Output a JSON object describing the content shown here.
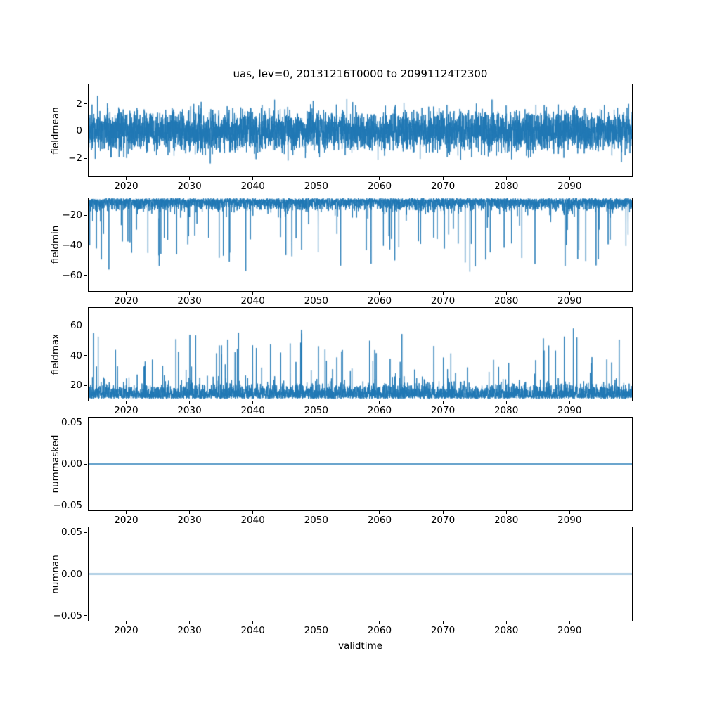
{
  "figure": {
    "title": "uas, lev=0, 20131216T0000 to 20991124T2300",
    "xlabel": "validtime",
    "line_color": "#1f77b4",
    "axis_color": "#000000",
    "background": "#ffffff"
  },
  "chart_data": [
    {
      "type": "line",
      "name": "fieldmean",
      "ylabel": "fieldmean",
      "xlim": [
        2013.96,
        2099.96
      ],
      "xticks": [
        2020,
        2030,
        2040,
        2050,
        2060,
        2070,
        2080,
        2090
      ],
      "ylim": [
        -3.4,
        3.5
      ],
      "yticks": [
        {
          "v": 2,
          "label": "2"
        },
        {
          "v": 0,
          "label": "0"
        },
        {
          "v": -2,
          "label": "−2"
        }
      ],
      "series": [
        {
          "name": "fieldmean",
          "summary": "dense high-frequency noise centred on 0, typical band ±2, extremes about ±3.2",
          "synthesis": {
            "kind": "noise",
            "seed": 42,
            "n": 5200,
            "base": 0,
            "scale": 1.05,
            "abs": false,
            "spike_prob": 0,
            "spike_scale": 0,
            "clip": [
              -3.3,
              3.3
            ]
          }
        }
      ]
    },
    {
      "type": "line",
      "name": "fieldmin",
      "ylabel": "fieldmin",
      "xlim": [
        2013.96,
        2099.96
      ],
      "xticks": [
        2020,
        2030,
        2040,
        2050,
        2060,
        2070,
        2080,
        2090
      ],
      "ylim": [
        -71,
        -8.2
      ],
      "yticks": [
        {
          "v": -20,
          "label": "−20"
        },
        {
          "v": -40,
          "label": "−40"
        },
        {
          "v": -60,
          "label": "−60"
        }
      ],
      "series": [
        {
          "name": "fieldmin",
          "summary": "dense band between about −8 and −20 with frequent downward spikes reaching −30 to −70",
          "synthesis": {
            "kind": "noise",
            "seed": 7,
            "n": 4600,
            "base": -8.3,
            "scale": -5.2,
            "abs": true,
            "spike_prob": 0.025,
            "spike_scale": -44,
            "clip": [
              -70.5,
              -7.5
            ]
          }
        }
      ]
    },
    {
      "type": "line",
      "name": "fieldmax",
      "ylabel": "fieldmax",
      "xlim": [
        2013.96,
        2099.96
      ],
      "xticks": [
        2020,
        2030,
        2040,
        2050,
        2060,
        2070,
        2080,
        2090
      ],
      "ylim": [
        9.5,
        72
      ],
      "yticks": [
        {
          "v": 60,
          "label": "60"
        },
        {
          "v": 40,
          "label": "40"
        },
        {
          "v": 20,
          "label": "20"
        }
      ],
      "series": [
        {
          "name": "fieldmax",
          "summary": "dense band between about 10 and 30 with frequent upward spikes reaching 40 to 68",
          "synthesis": {
            "kind": "noise",
            "seed": 13,
            "n": 4600,
            "base": 10.8,
            "scale": 6.2,
            "abs": true,
            "spike_prob": 0.025,
            "spike_scale": 41,
            "clip": [
              9.8,
              68.5
            ]
          }
        }
      ]
    },
    {
      "type": "line",
      "name": "nummasked",
      "ylabel": "nummasked",
      "xlim": [
        2013.96,
        2099.96
      ],
      "xticks": [
        2020,
        2030,
        2040,
        2050,
        2060,
        2070,
        2080,
        2090
      ],
      "ylim": [
        -0.057,
        0.057
      ],
      "yticks": [
        {
          "v": 0.05,
          "label": "0.05"
        },
        {
          "v": 0,
          "label": "0.00"
        },
        {
          "v": -0.05,
          "label": "−0.05"
        }
      ],
      "series": [
        {
          "name": "nummasked",
          "summary": "constant value 0 for the whole period",
          "synthesis": {
            "kind": "constant",
            "seed": 1,
            "n": 2,
            "base": 0,
            "scale": 0,
            "abs": false,
            "spike_prob": 0,
            "spike_scale": 0,
            "clip": [
              0,
              0
            ]
          }
        }
      ]
    },
    {
      "type": "line",
      "name": "numnan",
      "ylabel": "numnan",
      "xlim": [
        2013.96,
        2099.96
      ],
      "xticks": [
        2020,
        2030,
        2040,
        2050,
        2060,
        2070,
        2080,
        2090
      ],
      "ylim": [
        -0.057,
        0.057
      ],
      "yticks": [
        {
          "v": 0.05,
          "label": "0.05"
        },
        {
          "v": 0,
          "label": "0.00"
        },
        {
          "v": -0.05,
          "label": "−0.05"
        }
      ],
      "series": [
        {
          "name": "numnan",
          "summary": "constant value 0 for the whole period",
          "synthesis": {
            "kind": "constant",
            "seed": 2,
            "n": 2,
            "base": 0,
            "scale": 0,
            "abs": false,
            "spike_prob": 0,
            "spike_scale": 0,
            "clip": [
              0,
              0
            ]
          }
        }
      ]
    }
  ]
}
